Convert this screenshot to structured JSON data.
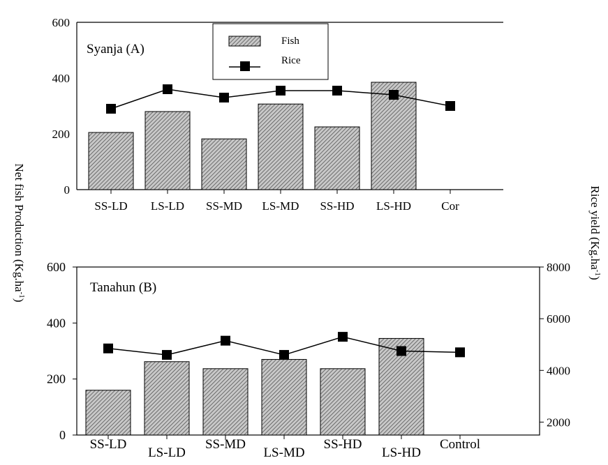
{
  "axis_titles": {
    "left": "Net fish Production (Kg.ha",
    "left_sup": "-1",
    "left_close": ")",
    "right": "Rice yield (Kg.ha",
    "right_sup": "-1",
    "right_close": ")"
  },
  "legend": {
    "fish": "Fish",
    "rice": "Rice"
  },
  "colors": {
    "bar_fill": "#c8c8c8",
    "bar_hatch": "#555555",
    "line": "#000000",
    "marker": "#000000"
  },
  "chart_data": [
    {
      "type": "bar",
      "panel": "Syanja (A)",
      "categories": [
        "SS-LD",
        "LS-LD",
        "SS-MD",
        "LS-MD",
        "SS-HD",
        "LS-HD",
        "Cor"
      ],
      "series": [
        {
          "name": "Fish",
          "axis": "left",
          "values": [
            205,
            280,
            182,
            307,
            225,
            385,
            null
          ]
        },
        {
          "name": "Rice",
          "axis": "left",
          "kind": "line",
          "values": [
            290,
            360,
            330,
            355,
            355,
            340,
            300
          ]
        }
      ],
      "y_left": {
        "min": 0,
        "max": 600,
        "ticks": [
          0,
          200,
          400,
          600
        ]
      }
    },
    {
      "type": "bar",
      "panel": "Tanahun (B)",
      "categories": [
        "SS-LD",
        "LS-LD",
        "SS-MD",
        "LS-MD",
        "SS-HD",
        "LS-HD",
        "Control"
      ],
      "series": [
        {
          "name": "Fish",
          "axis": "left",
          "values": [
            160,
            262,
            237,
            270,
            237,
            345,
            null
          ]
        },
        {
          "name": "Rice",
          "axis": "right",
          "kind": "line",
          "values": [
            4850,
            4600,
            5150,
            4600,
            5300,
            4750,
            4700
          ]
        }
      ],
      "y_left": {
        "min": 0,
        "max": 600,
        "ticks": [
          0,
          200,
          400,
          600
        ]
      },
      "y_right": {
        "min": 1500,
        "max": 8000,
        "ticks": [
          2000,
          4000,
          6000,
          8000
        ]
      }
    }
  ]
}
